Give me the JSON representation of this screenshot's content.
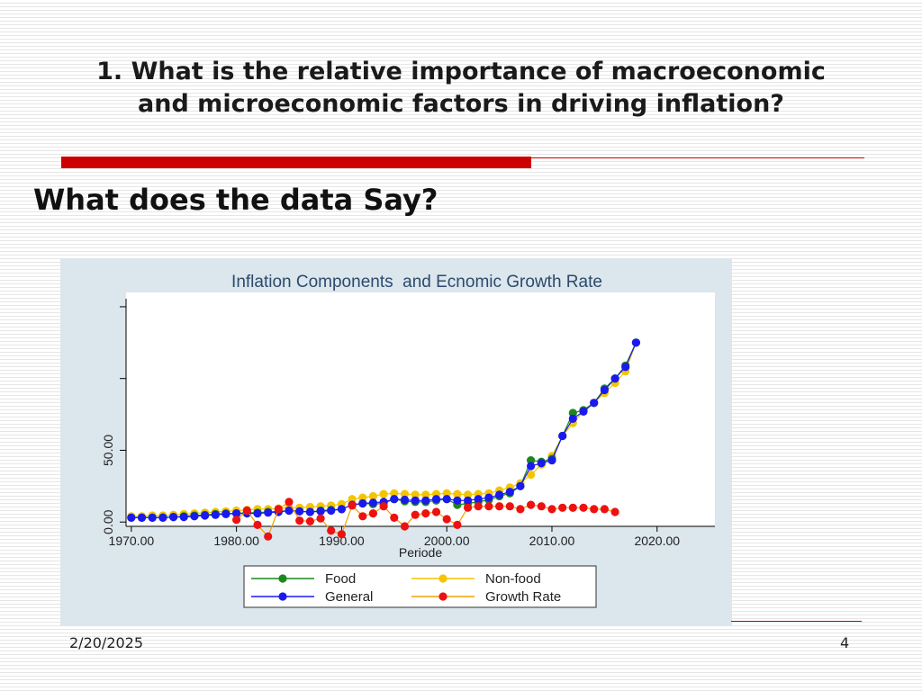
{
  "slide": {
    "title_line1": "1. What is the relative importance of macroeconomic",
    "title_line2": "and microeconomic factors in driving inflation?",
    "subtitle": "What does the data Say?",
    "date": "2/20/2025",
    "page_number": "4"
  },
  "colors": {
    "accent": "#cc0000",
    "chart_background": "#dbe6ed",
    "food": "#1a8a1a",
    "non_food": "#f5c400",
    "general": "#1a1aee",
    "growth_rate": "#ee1111",
    "growth_line": "#f0a000"
  },
  "chart_data": {
    "type": "line",
    "title": "Inflation Components  and Ecnomic Growth Rate",
    "xlabel": "Periode",
    "ylabel": "",
    "xlim": [
      1969.5,
      2025.5
    ],
    "ylim": [
      -3,
      160
    ],
    "x_ticks": [
      1970,
      1980,
      1990,
      2000,
      2010,
      2020
    ],
    "x_tick_labels": [
      "1970.00",
      "1980.00",
      "1990.00",
      "2000.00",
      "2010.00",
      "2020.00"
    ],
    "y_ticks": [
      0,
      50,
      100,
      150
    ],
    "y_tick_labels": [
      "0.00",
      "50.00",
      "",
      ""
    ],
    "grid": false,
    "legend_position": "bottom",
    "series": [
      {
        "name": "Food",
        "x": [
          1970,
          1971,
          1972,
          1973,
          1974,
          1975,
          1976,
          1977,
          1978,
          1979,
          1980,
          1981,
          1982,
          1983,
          1984,
          1985,
          1986,
          1987,
          1988,
          1989,
          1990,
          1991,
          1992,
          1993,
          1994,
          1995,
          1996,
          1997,
          1998,
          1999,
          2000,
          2001,
          2002,
          2003,
          2004,
          2005,
          2006,
          2007,
          2008,
          2009,
          2010,
          2011,
          2012,
          2013,
          2014,
          2015,
          2016,
          2017,
          2018
        ],
        "values": [
          3,
          3,
          3,
          3.2,
          3.5,
          4,
          4.5,
          5,
          5.5,
          6,
          6,
          6.5,
          6.5,
          7,
          7.5,
          8,
          7.5,
          7,
          8,
          8.5,
          9,
          12,
          13,
          12.5,
          13,
          16,
          14.5,
          14,
          14,
          15,
          16,
          12,
          13,
          14,
          15.5,
          18,
          20,
          25,
          43,
          42,
          44,
          60,
          76,
          78,
          83,
          93,
          100,
          109,
          125
        ],
        "color": "#1a8a1a"
      },
      {
        "name": "Non-food",
        "x": [
          1970,
          1971,
          1972,
          1973,
          1974,
          1975,
          1976,
          1977,
          1978,
          1979,
          1980,
          1981,
          1982,
          1983,
          1984,
          1985,
          1986,
          1987,
          1988,
          1989,
          1990,
          1991,
          1992,
          1993,
          1994,
          1995,
          1996,
          1997,
          1998,
          1999,
          2000,
          2001,
          2002,
          2003,
          2004,
          2005,
          2006,
          2007,
          2008,
          2009,
          2010,
          2011,
          2012,
          2013,
          2014,
          2015,
          2016,
          2017,
          2018
        ],
        "values": [
          4,
          4,
          4.5,
          4.5,
          5,
          5.5,
          6,
          6.5,
          7,
          7.5,
          8,
          8.5,
          9,
          9,
          9.5,
          10,
          10,
          10.5,
          11,
          11.5,
          12.5,
          16,
          17,
          18,
          19.5,
          20,
          19.5,
          19,
          19,
          19.5,
          20,
          19.5,
          19,
          19.5,
          20,
          22,
          24,
          27,
          33,
          40,
          46,
          60,
          69,
          77,
          83,
          90,
          97,
          105,
          125
        ],
        "color": "#f5c400"
      },
      {
        "name": "General",
        "x": [
          1970,
          1971,
          1972,
          1973,
          1974,
          1975,
          1976,
          1977,
          1978,
          1979,
          1980,
          1981,
          1982,
          1983,
          1984,
          1985,
          1986,
          1987,
          1988,
          1989,
          1990,
          1991,
          1992,
          1993,
          1994,
          1995,
          1996,
          1997,
          1998,
          1999,
          2000,
          2001,
          2002,
          2003,
          2004,
          2005,
          2006,
          2007,
          2008,
          2009,
          2010,
          2011,
          2012,
          2013,
          2014,
          2015,
          2016,
          2017,
          2018
        ],
        "values": [
          3,
          3,
          3,
          3,
          3.5,
          3.5,
          4,
          4.5,
          5,
          5.5,
          6,
          6,
          6,
          6.5,
          7,
          8,
          7.5,
          7,
          7.5,
          8,
          9,
          12,
          13,
          13.5,
          14,
          16,
          15.5,
          15,
          15,
          16,
          16,
          15,
          15,
          16,
          17,
          19,
          21,
          25,
          39,
          41,
          43,
          60,
          72,
          77,
          83,
          92,
          100,
          108,
          125
        ],
        "color": "#1a1aee"
      },
      {
        "name": "Growth Rate",
        "x": [
          1980,
          1981,
          1982,
          1983,
          1984,
          1985,
          1986,
          1987,
          1988,
          1989,
          1990,
          1991,
          1992,
          1993,
          1994,
          1995,
          1996,
          1997,
          1998,
          1999,
          2000,
          2001,
          2002,
          2003,
          2004,
          2005,
          2006,
          2007,
          2008,
          2009,
          2010,
          2011,
          2012,
          2013,
          2014,
          2015,
          2016
        ],
        "values": [
          1.5,
          8,
          -2,
          -10,
          9,
          14,
          1,
          0.5,
          2.5,
          -6,
          -8.5,
          11.5,
          4,
          6,
          11,
          3,
          -3,
          5,
          6,
          7,
          2,
          -2,
          10,
          11,
          11,
          11,
          11,
          9,
          12,
          11,
          9,
          10,
          10,
          10,
          9,
          9,
          7
        ],
        "color": "#ee1111",
        "line_color": "#f0a000"
      }
    ]
  }
}
